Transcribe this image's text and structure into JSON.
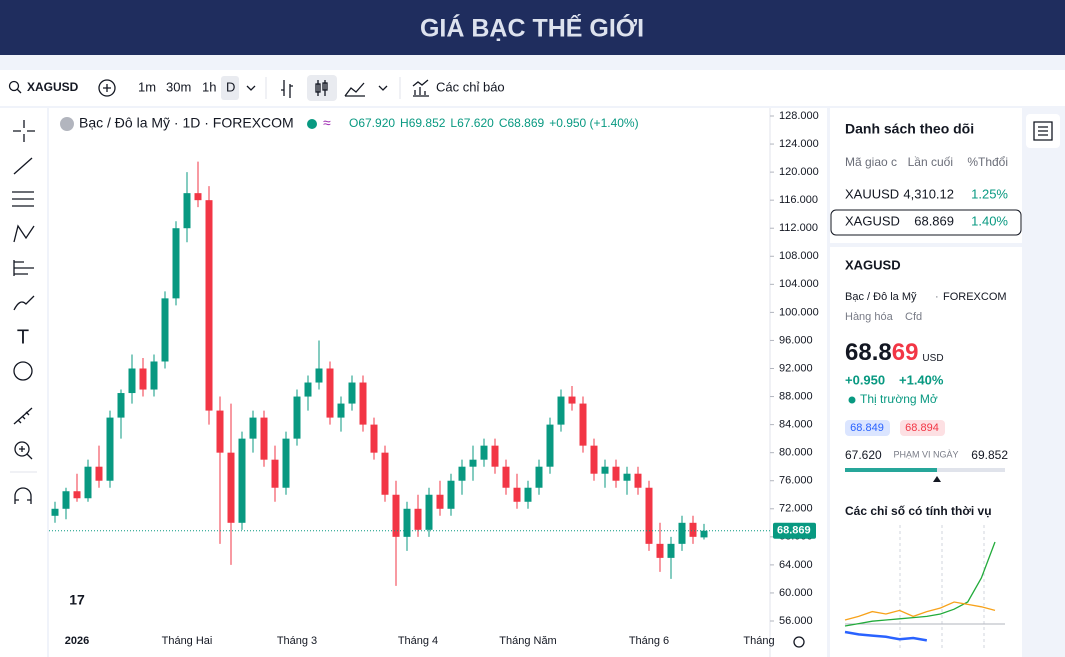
{
  "header": {
    "title": "GIÁ BẠC THẾ GIỚI"
  },
  "toolbar": {
    "symbol": "XAGUSD",
    "intervals": [
      "1m",
      "30m",
      "1h",
      "D"
    ],
    "indicators": "Các chỉ báo"
  },
  "chart_data": {
    "type": "candlestick",
    "title": "Bạc / Đô la Mỹ · 1D · FOREXCOM",
    "legend": {
      "open": "O67.920",
      "high": "H69.852",
      "low": "L67.620",
      "close": "C68.869",
      "change": "+0.950 (+1.40%)"
    },
    "categories": [
      null,
      null,
      "2026",
      null,
      null,
      null,
      null,
      null,
      null,
      null,
      null,
      null,
      "Tháng Hai",
      null,
      null,
      null,
      null,
      null,
      null,
      null,
      null,
      null,
      "Tháng 3",
      null,
      null,
      null,
      null,
      null,
      null,
      null,
      null,
      null,
      null,
      "Tháng 4",
      null,
      null,
      null,
      null,
      null,
      null,
      null,
      null,
      null,
      "Tháng Năm",
      null,
      null,
      null,
      null,
      null,
      null,
      null,
      null,
      null,
      null,
      "Tháng 6",
      null,
      null,
      null,
      null,
      null,
      null,
      null,
      null,
      null,
      "Tháng",
      null
    ],
    "open": [
      71,
      72,
      74.5,
      73.5,
      78,
      76,
      85,
      88.5,
      92,
      89,
      93,
      102,
      112,
      117,
      116,
      86,
      80,
      70,
      82,
      85,
      79,
      75,
      82,
      88,
      90,
      92,
      85,
      87,
      90,
      84,
      80,
      74,
      68,
      72,
      69,
      74,
      72,
      76,
      78,
      79,
      81,
      78,
      75,
      73,
      75,
      78,
      84,
      88,
      87,
      81,
      77,
      78,
      76,
      77,
      75,
      67,
      65,
      67,
      70,
      67.92,
      null,
      null,
      null,
      null,
      null,
      null
    ],
    "high": [
      73,
      75,
      77,
      79,
      81,
      86,
      89,
      94,
      93.5,
      94,
      103,
      113,
      120,
      121.5,
      118,
      88,
      87,
      83,
      86,
      86,
      81,
      83,
      89,
      91,
      96,
      93,
      88,
      91,
      91,
      85,
      81,
      76,
      73,
      74,
      75,
      76,
      77,
      79,
      81,
      82,
      82,
      79,
      77,
      76,
      79,
      85,
      89,
      89.5,
      88,
      82,
      79,
      79,
      78,
      78,
      76,
      70,
      68,
      71,
      71,
      69.852,
      null,
      null,
      null,
      null,
      null,
      null
    ],
    "low": [
      70,
      70.5,
      73,
      73,
      75,
      75,
      82,
      87,
      88,
      88,
      92,
      101,
      110,
      115,
      84,
      67,
      64,
      69,
      80,
      78,
      73,
      74,
      81,
      86,
      89,
      84,
      83,
      86,
      83,
      79,
      73,
      61,
      66,
      68,
      68,
      71,
      71,
      74,
      76,
      78,
      77,
      74,
      72,
      72,
      74,
      77,
      83,
      86,
      80,
      76,
      75,
      75,
      74,
      74,
      66,
      63,
      62,
      66,
      67,
      67.62,
      null,
      null,
      null,
      null,
      null,
      null
    ],
    "close": [
      72,
      74.5,
      73.5,
      78,
      76,
      85,
      88.5,
      92,
      89,
      93,
      102,
      112,
      117,
      116,
      86,
      80,
      70,
      82,
      85,
      79,
      75,
      82,
      88,
      90,
      92,
      85,
      87,
      90,
      84,
      80,
      74,
      68,
      72,
      69,
      74,
      72,
      76,
      78,
      79,
      81,
      78,
      75,
      73,
      75,
      78,
      84,
      88,
      87,
      81,
      77,
      78,
      76,
      77,
      75,
      67,
      65,
      67,
      70,
      68,
      68.869,
      null,
      null,
      null,
      null,
      null,
      null
    ],
    "up_color": "#089981",
    "down_color": "#f23645",
    "grid": false,
    "ylim": [
      56,
      128
    ],
    "yticks": [
      {
        "value": 56,
        "label": "56.000"
      },
      {
        "value": 60,
        "label": "60.000"
      },
      {
        "value": 64,
        "label": "64.000"
      },
      {
        "value": 68,
        "label": "68.000"
      },
      {
        "value": 72,
        "label": "72.000"
      },
      {
        "value": 76,
        "label": "76.000"
      },
      {
        "value": 80,
        "label": "80.000"
      },
      {
        "value": 84,
        "label": "84.000"
      },
      {
        "value": 88,
        "label": "88.000"
      },
      {
        "value": 92,
        "label": "92.000"
      },
      {
        "value": 96,
        "label": "96.000"
      },
      {
        "value": 100,
        "label": "100.000"
      },
      {
        "value": 104,
        "label": "104.000"
      },
      {
        "value": 108,
        "label": "108.000"
      },
      {
        "value": 112,
        "label": "112.000"
      },
      {
        "value": 116,
        "label": "116.000"
      },
      {
        "value": 120,
        "label": "120.000"
      },
      {
        "value": 124,
        "label": "124.000"
      },
      {
        "value": 128,
        "label": "128.000"
      }
    ]
  },
  "watchlist": {
    "title": "Danh sách theo dõi",
    "columns": [
      "Mã giao c",
      "Lần cuối",
      "%Thđổi"
    ],
    "rows": [
      [
        "XAUUSD",
        "4,310.12",
        "1.25%"
      ],
      [
        "XAGUSD",
        "68.869",
        "1.40%"
      ]
    ]
  },
  "details": {
    "symbol": "XAGUSD",
    "name": "Bạc / Đô la Mỹ",
    "exchange": "FOREXCOM",
    "category": "Hàng hóa",
    "kind": "Cfd",
    "price_main": "68.8",
    "price_tail": "69",
    "currency": "USD",
    "change": "+0.950",
    "change_pct": "+1.40%",
    "status": "Thị trường Mở",
    "bid": "68.849",
    "ask": "68.894",
    "range_low": "67.620",
    "range_label": "PHẠM VI NGÀY",
    "range_high": "69.852"
  },
  "seasonal": {
    "type": "line",
    "title": "Các chỉ số có tính thời vụ",
    "ylim": [
      0,
      100
    ],
    "series": [
      {
        "color": "#22ab3b",
        "values": [
          20,
          22,
          24,
          25,
          26,
          27,
          28,
          30,
          34,
          40,
          60,
          90
        ]
      },
      {
        "color": "#f7a21b",
        "values": [
          25,
          28,
          32,
          30,
          33,
          28,
          32,
          35,
          40,
          38,
          36,
          33
        ]
      },
      {
        "color": "#2962ff",
        "values": [
          15,
          13,
          12,
          11,
          9,
          10,
          8,
          null,
          null,
          null,
          null,
          null
        ]
      }
    ]
  }
}
